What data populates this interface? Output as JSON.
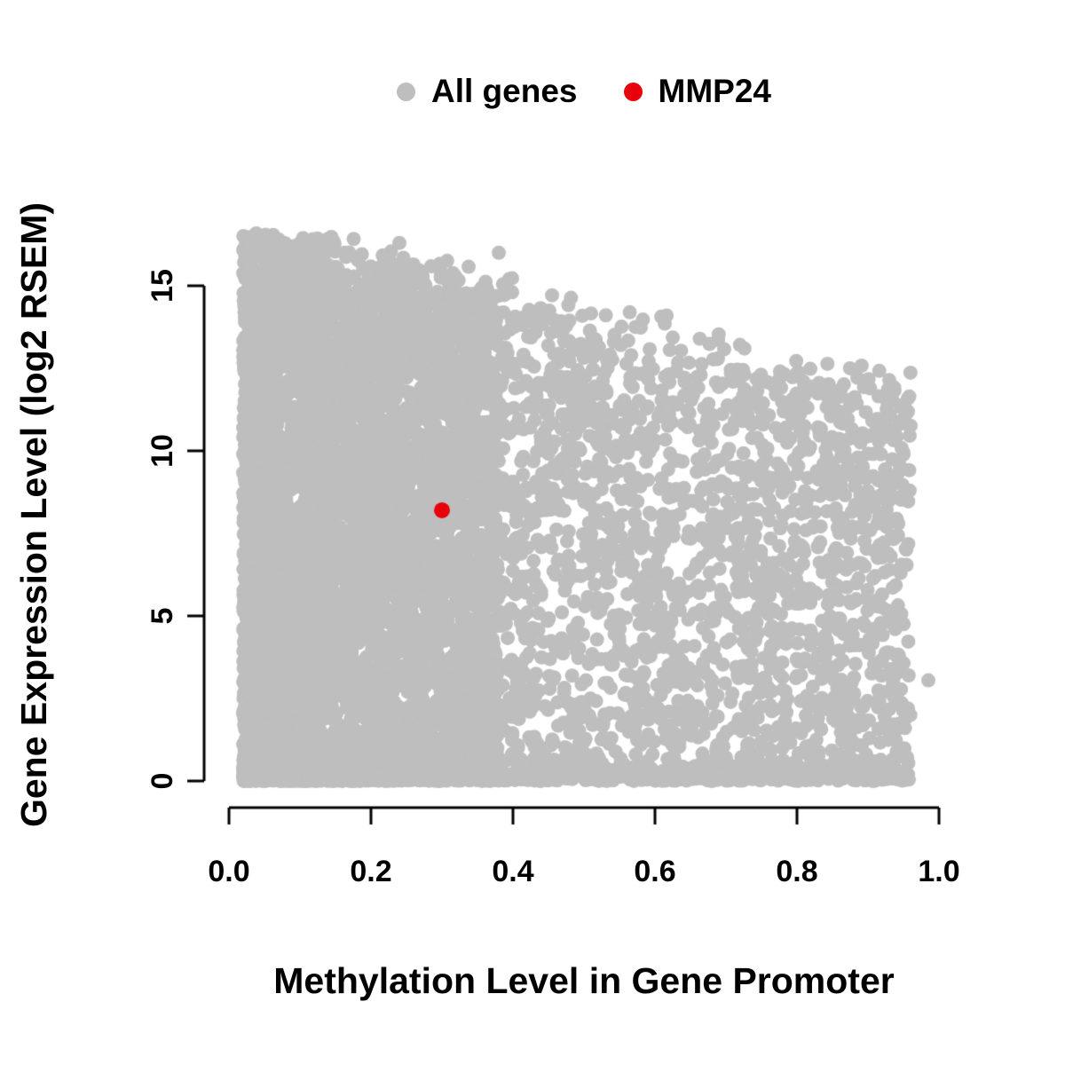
{
  "figure": {
    "background": "#ffffff"
  },
  "legend": {
    "position": "top-center",
    "items": [
      {
        "label": "All genes",
        "color": "#bebebe"
      },
      {
        "label": "MMP24",
        "color": "#e8000b"
      }
    ]
  },
  "chart_data": {
    "type": "scatter",
    "title": "",
    "xlabel": "Methylation Level in Gene Promoter",
    "ylabel": "Gene Expression Level (log2 RSEM)",
    "xlim": [
      0,
      1
    ],
    "ylim": [
      0,
      15
    ],
    "x_ticks": [
      0,
      0.2,
      0.4,
      0.6,
      0.8,
      1.0
    ],
    "x_tick_labels": [
      "0.0",
      "0.2",
      "0.4",
      "0.6",
      "0.8",
      "1.0"
    ],
    "y_ticks": [
      0,
      5,
      10,
      15
    ],
    "y_tick_labels": [
      "0",
      "5",
      "10",
      "15"
    ],
    "grid": false,
    "legend_position": "top-center",
    "series": [
      {
        "name": "All genes",
        "color": "#bebebe",
        "marker": "filled-circle",
        "point_radius_px": 8,
        "distribution": {
          "description": "dense cloud of ~9000 genes; x from 0.02 to 0.96 skewed toward low methylation; y from 0 up to an upper envelope ymax = 16.8 - 5.2*x with a dense band hugging y = 0",
          "n": 9000,
          "seed": 42,
          "x_range": [
            0.02,
            0.96
          ],
          "y_range": [
            0,
            16.6
          ],
          "envelope_intercept": 16.8,
          "envelope_slope": -5.2,
          "bottom_band_fraction": 0.18
        },
        "extra_points": [
          [
            0.985,
            3.05
          ],
          [
            0.04,
            16.55
          ],
          [
            0.24,
            16.3
          ],
          [
            0.38,
            16.0
          ]
        ]
      },
      {
        "name": "MMP24",
        "color": "#e8000b",
        "marker": "filled-circle",
        "point_radius_px": 9,
        "points": [
          [
            0.3,
            8.2
          ]
        ]
      }
    ]
  }
}
